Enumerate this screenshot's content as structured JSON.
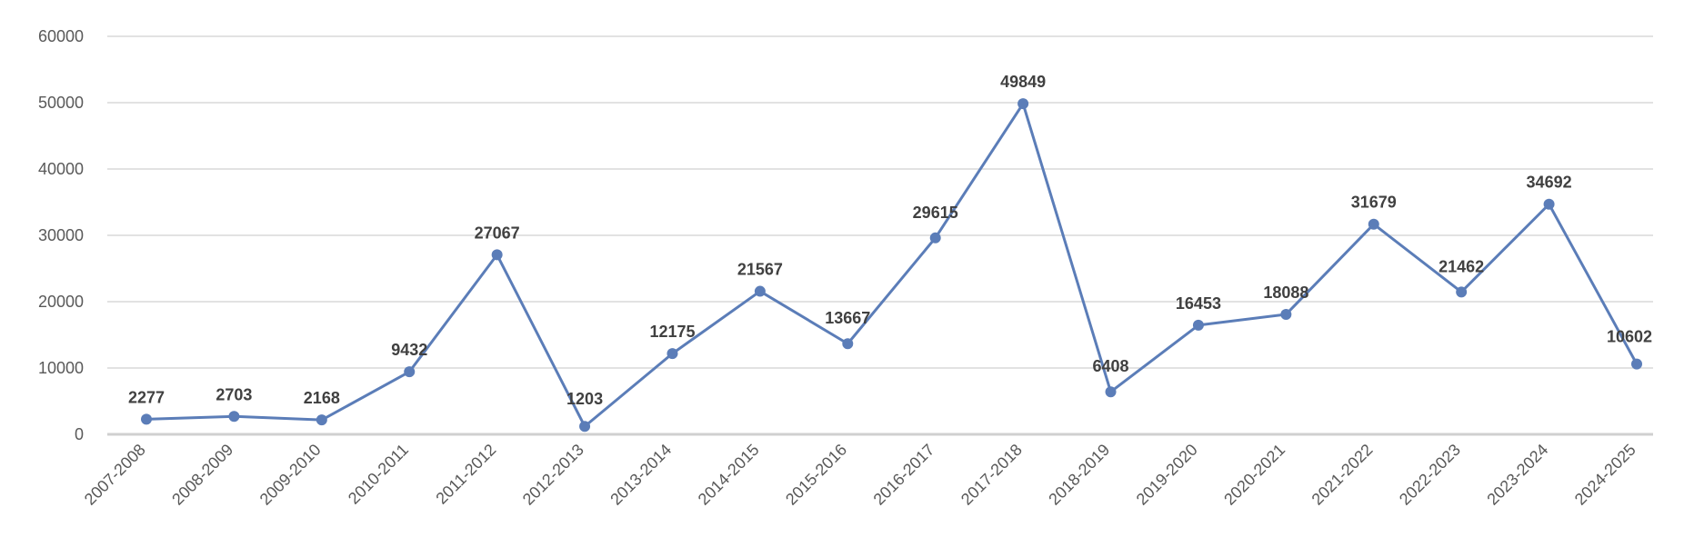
{
  "chart_data": {
    "type": "line",
    "title": "",
    "xlabel": "",
    "ylabel": "",
    "ylim": [
      0,
      60000
    ],
    "yticks": [
      0,
      10000,
      20000,
      30000,
      40000,
      50000,
      60000
    ],
    "grid": true,
    "legend": "none",
    "categories": [
      "2007-2008",
      "2008-2009",
      "2009-2010",
      "2010-2011",
      "2011-2012",
      "2012-2013",
      "2013-2014",
      "2014-2015",
      "2015-2016",
      "2016-2017",
      "2017-2018",
      "2018-2019",
      "2019-2020",
      "2020-2021",
      "2021-2022",
      "2022-2023",
      "2023-2024",
      "2024-2025"
    ],
    "series": [
      {
        "color": "#5b7db8",
        "values": [
          2277,
          2703,
          2168,
          9432,
          27067,
          1203,
          12175,
          21567,
          13667,
          29615,
          49849,
          6408,
          16453,
          18088,
          31679,
          21462,
          34692,
          10602
        ],
        "data_labels": [
          "2277",
          "2703",
          "2168",
          "9432",
          "27067",
          "1203",
          "12175",
          "21567",
          "13667",
          "29615",
          "49849",
          "6408",
          "16453",
          "18088",
          "31679",
          "21462",
          "34692",
          "10602"
        ]
      }
    ]
  }
}
